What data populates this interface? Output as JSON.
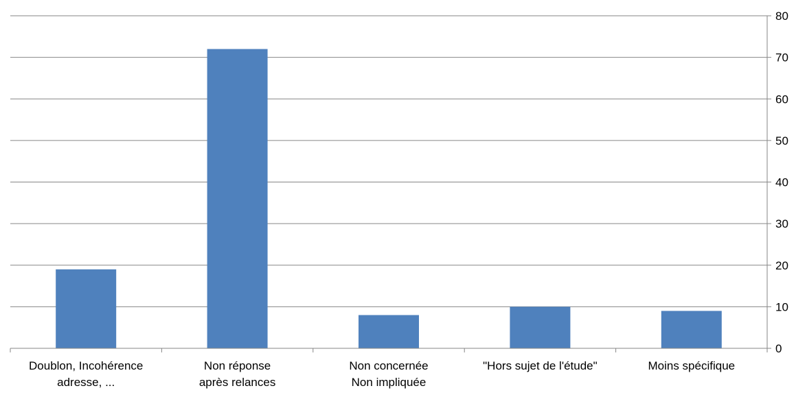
{
  "chart_data": {
    "type": "bar",
    "title": "",
    "xlabel": "",
    "ylabel": "",
    "categories": [
      [
        "Doublon, Incohérence",
        "adresse, ..."
      ],
      [
        "Non réponse",
        "après relances"
      ],
      [
        "Non concernée",
        "Non impliquée"
      ],
      [
        "\"Hors sujet de l'étude\""
      ],
      [
        "Moins spécifique"
      ]
    ],
    "values": [
      19,
      72,
      8,
      10,
      9
    ],
    "ylim": [
      0,
      80
    ],
    "yticks": [
      0,
      10,
      20,
      30,
      40,
      50,
      60,
      70,
      80
    ],
    "y_axis_side": "right",
    "grid": true,
    "legend": "none",
    "bar_color": "#4F81BD",
    "grid_color": "#868686"
  }
}
